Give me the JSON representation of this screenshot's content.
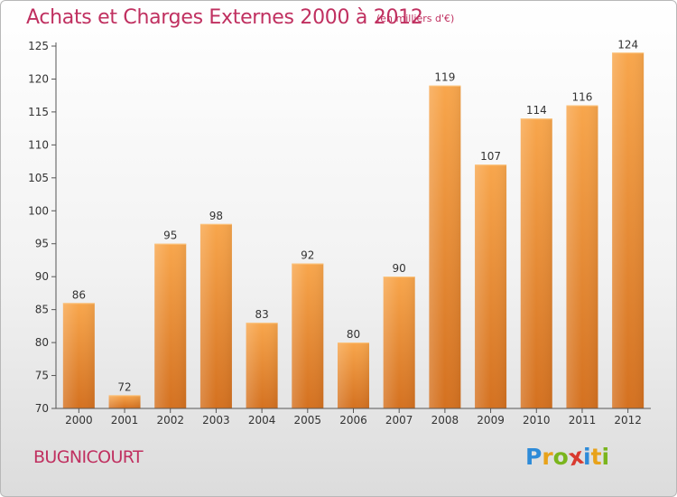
{
  "header": {
    "title": "Achats et Charges Externes 2000 à 2012",
    "unit": "(en milliers d'€)"
  },
  "footer": {
    "commune": "BUGNICOURT",
    "logo_letters": [
      "P",
      "r",
      "o",
      "x",
      "i",
      "t",
      "i"
    ],
    "logo_colors": [
      "#2e8bd8",
      "#e8a21a",
      "#7ab51d",
      "#d93a2f",
      "#2e8bd8",
      "#e8a21a",
      "#7ab51d"
    ]
  },
  "colors": {
    "bar_light": "#f7a64a",
    "bar_dark": "#d67320",
    "axis": "#555555",
    "grid": "#e0e0e0",
    "text": "#333333",
    "accent": "#c03060"
  },
  "chart_data": {
    "type": "bar",
    "categories": [
      "2000",
      "2001",
      "2002",
      "2003",
      "2004",
      "2005",
      "2006",
      "2007",
      "2008",
      "2009",
      "2010",
      "2011",
      "2012"
    ],
    "values": [
      86,
      72,
      95,
      98,
      83,
      92,
      80,
      90,
      119,
      107,
      114,
      116,
      124
    ],
    "title": "Achats et Charges Externes 2000 à 2012",
    "subtitle": "(en milliers d'€)",
    "xlabel": "",
    "ylabel": "",
    "ylim": [
      70,
      125
    ],
    "yticks": [
      70,
      75,
      80,
      85,
      90,
      95,
      100,
      105,
      110,
      115,
      120,
      125
    ],
    "grid": false,
    "data_labels": true
  }
}
